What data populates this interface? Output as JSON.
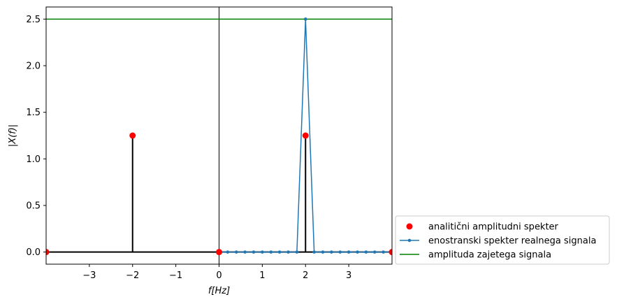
{
  "chart_data": {
    "type": "line",
    "xlabel": "f[Hz]",
    "ylabel": "|X(f)|",
    "xlim": [
      -4,
      4
    ],
    "ylim": [
      -0.13,
      2.63
    ],
    "x_ticks": [
      -3,
      -2,
      -1,
      0,
      1,
      2,
      3
    ],
    "y_ticks": [
      0.0,
      0.5,
      1.0,
      1.5,
      2.0,
      2.5
    ],
    "x_tick_labels": [
      "−3",
      "−2",
      "−1",
      "0",
      "1",
      "2",
      "3"
    ],
    "y_tick_labels": [
      "0.0",
      "0.5",
      "1.0",
      "1.5",
      "2.0",
      "2.5"
    ],
    "grid": false,
    "legend_placement": "outside-bottom-right",
    "series": [
      {
        "name": "analitični amplitudni spekter",
        "kind": "points",
        "color": "#ff0000",
        "x": [
          -4,
          -2,
          0,
          2,
          4
        ],
        "y": [
          0,
          1.25,
          0,
          1.25,
          0
        ]
      },
      {
        "name": "enostranski spekter realnega signala",
        "kind": "line-marker",
        "color": "#1f77b4",
        "x": [
          0,
          0.2,
          0.4,
          0.6,
          0.8,
          1.0,
          1.2,
          1.4,
          1.6,
          1.8,
          2.0,
          2.2,
          2.4,
          2.6,
          2.8,
          3.0,
          3.2,
          3.4,
          3.6,
          3.8,
          4.0
        ],
        "y": [
          0,
          0,
          0,
          0,
          0,
          0,
          0,
          0,
          0,
          0,
          2.5,
          0,
          0,
          0,
          0,
          0,
          0,
          0,
          0,
          0,
          0
        ]
      },
      {
        "name": "amplituda zajetega signala",
        "kind": "hline",
        "color": "#008000",
        "y": 2.5
      }
    ],
    "stems": {
      "color": "#000000",
      "baseline": 0,
      "x": [
        -4,
        -2,
        0,
        2,
        4
      ],
      "y": [
        0,
        1.25,
        0,
        1.25,
        0
      ]
    },
    "vline_at_x": 0,
    "vline_color": "#000000"
  }
}
